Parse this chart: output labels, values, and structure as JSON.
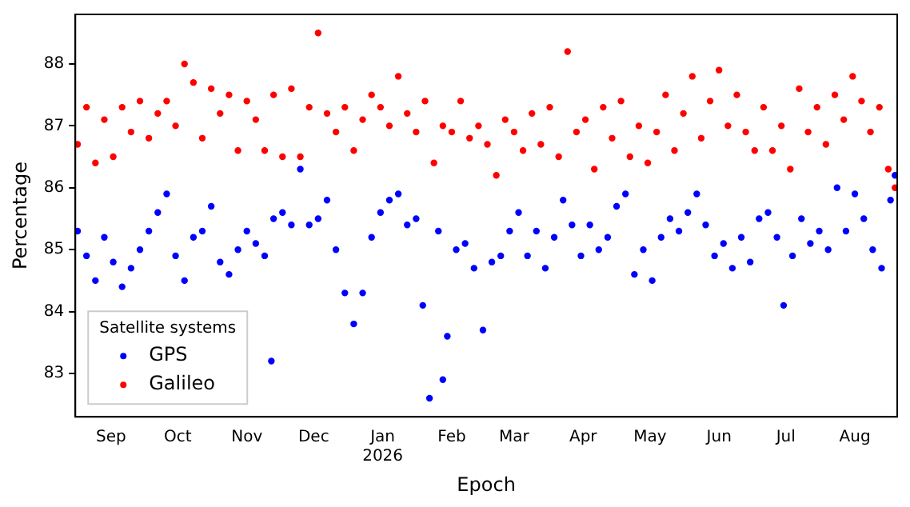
{
  "chart_data": {
    "type": "scatter",
    "xlabel": "Epoch",
    "ylabel": "Percentage",
    "legend_title": "Satellite systems",
    "legend": "bottom left",
    "marker": "circle",
    "grid": false,
    "xlim": [
      "2025-08-16",
      "2026-08-20"
    ],
    "ylim": [
      82.3,
      88.8
    ],
    "yticks": [
      83,
      84,
      85,
      86,
      87,
      88
    ],
    "xticks": [
      {
        "value": "2025-09-01",
        "label": "Sep"
      },
      {
        "value": "2025-10-01",
        "label": "Oct"
      },
      {
        "value": "2025-11-01",
        "label": "Nov"
      },
      {
        "value": "2025-12-01",
        "label": "Dec"
      },
      {
        "value": "2026-01-01",
        "label": "Jan\n2026"
      },
      {
        "value": "2026-02-01",
        "label": "Feb"
      },
      {
        "value": "2026-03-01",
        "label": "Mar"
      },
      {
        "value": "2026-04-01",
        "label": "Apr"
      },
      {
        "value": "2026-05-01",
        "label": "May"
      },
      {
        "value": "2026-06-01",
        "label": "Jun"
      },
      {
        "value": "2026-07-01",
        "label": "Jul"
      },
      {
        "value": "2026-08-01",
        "label": "Aug"
      }
    ],
    "series": [
      {
        "name": "GPS",
        "color": "#0000ff",
        "x": [
          "2025-08-17",
          "2025-08-21",
          "2025-08-25",
          "2025-08-29",
          "2025-09-02",
          "2025-09-06",
          "2025-09-10",
          "2025-09-14",
          "2025-09-18",
          "2025-09-22",
          "2025-09-26",
          "2025-09-30",
          "2025-10-04",
          "2025-10-08",
          "2025-10-12",
          "2025-10-16",
          "2025-10-20",
          "2025-10-24",
          "2025-10-28",
          "2025-11-01",
          "2025-11-05",
          "2025-11-09",
          "2025-11-12",
          "2025-11-13",
          "2025-11-17",
          "2025-11-21",
          "2025-11-25",
          "2025-11-29",
          "2025-12-03",
          "2025-12-07",
          "2025-12-11",
          "2025-12-15",
          "2025-12-19",
          "2025-12-23",
          "2025-12-27",
          "2025-12-31",
          "2026-01-04",
          "2026-01-08",
          "2026-01-12",
          "2026-01-16",
          "2026-01-19",
          "2026-01-22",
          "2026-01-26",
          "2026-01-28",
          "2026-01-30",
          "2026-02-03",
          "2026-02-07",
          "2026-02-11",
          "2026-02-15",
          "2026-02-19",
          "2026-02-23",
          "2026-02-27",
          "2026-03-03",
          "2026-03-07",
          "2026-03-11",
          "2026-03-15",
          "2026-03-19",
          "2026-03-23",
          "2026-03-27",
          "2026-03-31",
          "2026-04-04",
          "2026-04-08",
          "2026-04-12",
          "2026-04-16",
          "2026-04-20",
          "2026-04-24",
          "2026-04-28",
          "2026-05-02",
          "2026-05-06",
          "2026-05-10",
          "2026-05-14",
          "2026-05-18",
          "2026-05-22",
          "2026-05-26",
          "2026-05-30",
          "2026-06-03",
          "2026-06-07",
          "2026-06-11",
          "2026-06-15",
          "2026-06-19",
          "2026-06-23",
          "2026-06-27",
          "2026-06-30",
          "2026-07-04",
          "2026-07-08",
          "2026-07-12",
          "2026-07-16",
          "2026-07-20",
          "2026-07-24",
          "2026-07-28",
          "2026-08-01",
          "2026-08-05",
          "2026-08-09",
          "2026-08-13",
          "2026-08-17",
          "2026-08-19"
        ],
        "values": [
          85.3,
          84.9,
          84.5,
          85.2,
          84.8,
          84.4,
          84.7,
          85.0,
          85.3,
          85.6,
          85.9,
          84.9,
          84.5,
          85.2,
          85.3,
          85.7,
          84.8,
          84.6,
          85.0,
          85.3,
          85.1,
          84.9,
          83.2,
          85.5,
          85.6,
          85.4,
          86.3,
          85.4,
          85.5,
          85.8,
          85.0,
          84.3,
          83.8,
          84.3,
          85.2,
          85.6,
          85.8,
          85.9,
          85.4,
          85.5,
          84.1,
          82.6,
          85.3,
          82.9,
          83.6,
          85.0,
          85.1,
          84.7,
          83.7,
          84.8,
          84.9,
          85.3,
          85.6,
          84.9,
          85.3,
          84.7,
          85.2,
          85.8,
          85.4,
          84.9,
          85.4,
          85.0,
          85.2,
          85.7,
          85.9,
          84.6,
          85.0,
          84.5,
          85.2,
          85.5,
          85.3,
          85.6,
          85.9,
          85.4,
          84.9,
          85.1,
          84.7,
          85.2,
          84.8,
          85.5,
          85.6,
          85.2,
          84.1,
          84.9,
          85.5,
          85.1,
          85.3,
          85.0,
          86.0,
          85.3,
          85.9,
          85.5,
          85.0,
          84.7,
          85.8,
          86.2
        ]
      },
      {
        "name": "Galileo",
        "color": "#ff0000",
        "x": [
          "2025-08-17",
          "2025-08-21",
          "2025-08-25",
          "2025-08-29",
          "2025-09-02",
          "2025-09-06",
          "2025-09-10",
          "2025-09-14",
          "2025-09-18",
          "2025-09-22",
          "2025-09-26",
          "2025-09-30",
          "2025-10-04",
          "2025-10-08",
          "2025-10-12",
          "2025-10-16",
          "2025-10-20",
          "2025-10-24",
          "2025-10-28",
          "2025-11-01",
          "2025-11-05",
          "2025-11-09",
          "2025-11-13",
          "2025-11-17",
          "2025-11-21",
          "2025-11-25",
          "2025-11-29",
          "2025-12-03",
          "2025-12-07",
          "2025-12-11",
          "2025-12-15",
          "2025-12-19",
          "2025-12-23",
          "2025-12-27",
          "2025-12-31",
          "2026-01-04",
          "2026-01-08",
          "2026-01-12",
          "2026-01-16",
          "2026-01-20",
          "2026-01-24",
          "2026-01-28",
          "2026-02-01",
          "2026-02-05",
          "2026-02-09",
          "2026-02-13",
          "2026-02-17",
          "2026-02-21",
          "2026-02-25",
          "2026-03-01",
          "2026-03-05",
          "2026-03-09",
          "2026-03-13",
          "2026-03-17",
          "2026-03-21",
          "2026-03-25",
          "2026-03-29",
          "2026-04-02",
          "2026-04-06",
          "2026-04-10",
          "2026-04-14",
          "2026-04-18",
          "2026-04-22",
          "2026-04-26",
          "2026-04-30",
          "2026-05-04",
          "2026-05-08",
          "2026-05-12",
          "2026-05-16",
          "2026-05-20",
          "2026-05-24",
          "2026-05-28",
          "2026-06-01",
          "2026-06-05",
          "2026-06-09",
          "2026-06-13",
          "2026-06-17",
          "2026-06-21",
          "2026-06-25",
          "2026-06-29",
          "2026-07-03",
          "2026-07-07",
          "2026-07-11",
          "2026-07-15",
          "2026-07-19",
          "2026-07-23",
          "2026-07-27",
          "2026-07-31",
          "2026-08-04",
          "2026-08-08",
          "2026-08-12",
          "2026-08-16",
          "2026-08-19"
        ],
        "values": [
          86.7,
          87.3,
          86.4,
          87.1,
          86.5,
          87.3,
          86.9,
          87.4,
          86.8,
          87.2,
          87.4,
          87.0,
          88.0,
          87.7,
          86.8,
          87.6,
          87.2,
          87.5,
          86.6,
          87.4,
          87.1,
          86.6,
          87.5,
          86.5,
          87.6,
          86.5,
          87.3,
          88.5,
          87.2,
          86.9,
          87.3,
          86.6,
          87.1,
          87.5,
          87.3,
          87.0,
          87.8,
          87.2,
          86.9,
          87.4,
          86.4,
          87.0,
          86.9,
          87.4,
          86.8,
          87.0,
          86.7,
          86.2,
          87.1,
          86.9,
          86.6,
          87.2,
          86.7,
          87.3,
          86.5,
          88.2,
          86.9,
          87.1,
          86.3,
          87.3,
          86.8,
          87.4,
          86.5,
          87.0,
          86.4,
          86.9,
          87.5,
          86.6,
          87.2,
          87.8,
          86.8,
          87.4,
          87.9,
          87.0,
          87.5,
          86.9,
          86.6,
          87.3,
          86.6,
          87.0,
          86.3,
          87.6,
          86.9,
          87.3,
          86.7,
          87.5,
          87.1,
          87.8,
          87.4,
          86.9,
          87.3,
          86.3,
          86.0
        ]
      }
    ]
  }
}
